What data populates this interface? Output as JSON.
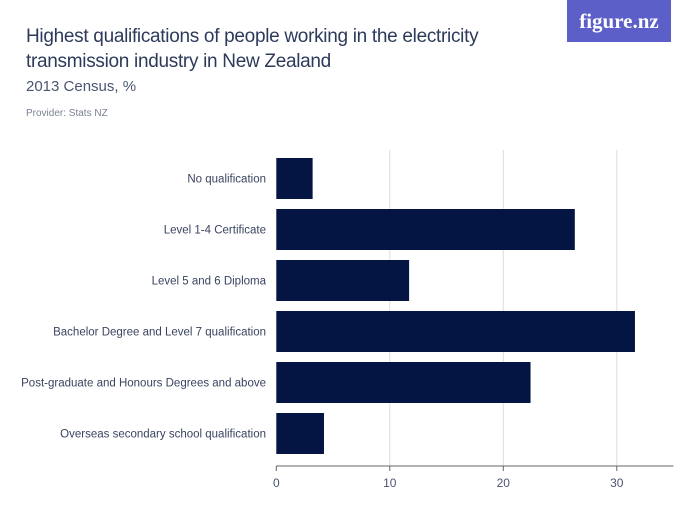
{
  "header": {
    "title": "Highest qualifications of people working in the electricity transmission industry in New Zealand",
    "subtitle": "2013 Census, %",
    "provider": "Provider: Stats NZ",
    "logo": "figure.nz"
  },
  "colors": {
    "bar": "#041443",
    "logo_bg": "#5b5fc7"
  },
  "chart_data": {
    "type": "bar",
    "orientation": "horizontal",
    "categories": [
      "No qualification",
      "Level 1-4 Certificate",
      "Level 5 and 6 Diploma",
      "Bachelor Degree and Level 7 qualification",
      "Post-graduate and Honours Degrees and above",
      "Overseas secondary school qualification"
    ],
    "values": [
      3.2,
      26.3,
      11.7,
      31.6,
      22.4,
      4.2
    ],
    "xlim": [
      0,
      35
    ],
    "xticks": [
      0,
      10,
      20,
      30
    ],
    "grid": true,
    "title": "Highest qualifications of people working in the electricity transmission industry in New Zealand",
    "subtitle": "2013 Census, %"
  }
}
